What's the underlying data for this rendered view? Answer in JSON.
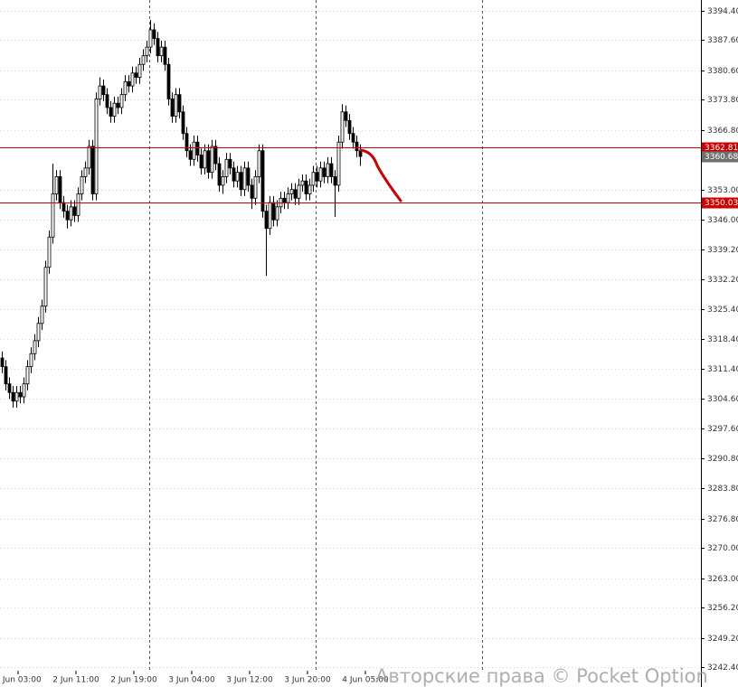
{
  "chart_data": {
    "type": "candlestick",
    "open": [
      3314,
      3312,
      3308,
      3306,
      3304,
      3306,
      3305,
      3308,
      3312,
      3315,
      3318,
      3322,
      3326,
      3335,
      3342,
      3352,
      3356,
      3350,
      3348,
      3346,
      3349,
      3347,
      3352,
      3356,
      3358,
      3363,
      3352,
      3374,
      3377,
      3375,
      3372,
      3370,
      3373,
      3372,
      3375,
      3378,
      3377,
      3380,
      3379,
      3382,
      3384,
      3386,
      3390,
      3388,
      3384,
      3386,
      3382,
      3374,
      3370,
      3375,
      3371,
      3366,
      3362,
      3360,
      3364,
      3361,
      3358,
      3362,
      3357,
      3363,
      3359,
      3354,
      3356,
      3360,
      3358,
      3355,
      3357,
      3353,
      3358,
      3354,
      3351,
      3356,
      3362,
      3348,
      3344,
      3350,
      3346,
      3349,
      3351,
      3350,
      3352,
      3353,
      3351,
      3354,
      3355,
      3352,
      3354,
      3357,
      3355,
      3358,
      3356,
      3359,
      3356,
      3354,
      3364,
      3371,
      3369,
      3366,
      3364,
      3362
    ],
    "high": [
      3315.5,
      3313.5,
      3309.5,
      3307.5,
      3307.5,
      3307.5,
      3309.5,
      3313.5,
      3316.5,
      3319.5,
      3323.5,
      3327.5,
      3336.5,
      3343.5,
      3359,
      3357.5,
      3357.5,
      3351.5,
      3349.5,
      3350.5,
      3350.5,
      3353.5,
      3357.5,
      3359.5,
      3364.5,
      3364.5,
      3375.5,
      3379,
      3378.5,
      3376.5,
      3373.5,
      3374.5,
      3374.5,
      3376.5,
      3379.5,
      3379.5,
      3381.5,
      3381.5,
      3383.5,
      3385.5,
      3387.5,
      3392.3,
      3391.5,
      3389.5,
      3387.5,
      3387.5,
      3383.5,
      3375.5,
      3376.5,
      3376.5,
      3372.5,
      3367.5,
      3363.5,
      3365.5,
      3365.5,
      3362.5,
      3363.5,
      3363.5,
      3364.5,
      3364.5,
      3360.5,
      3357.5,
      3361.5,
      3361.5,
      3359.5,
      3358.5,
      3358.5,
      3359.5,
      3359.5,
      3355.5,
      3357.5,
      3363.5,
      3363.5,
      3349.5,
      3351.5,
      3351.5,
      3350.5,
      3352.5,
      3352.5,
      3353.5,
      3354.5,
      3354.5,
      3355.5,
      3356.5,
      3356.5,
      3355.5,
      3358.5,
      3358.5,
      3359.5,
      3359.5,
      3360.5,
      3360.5,
      3357.5,
      3365.5,
      3372.8,
      3372.5,
      3370.5,
      3367.5,
      3365.5,
      3363.5
    ],
    "low": [
      3310.5,
      3306.5,
      3304.5,
      3302.5,
      3302.5,
      3303.5,
      3303.5,
      3306.5,
      3310.5,
      3313.5,
      3316.5,
      3320.5,
      3324.5,
      3333.5,
      3340.5,
      3350.5,
      3348.5,
      3346.5,
      3344,
      3344.5,
      3345.5,
      3345.5,
      3350.5,
      3354.5,
      3356.5,
      3350.5,
      3350.5,
      3372.5,
      3373.5,
      3370.5,
      3368.5,
      3368.5,
      3370.5,
      3370.5,
      3373.5,
      3375.5,
      3375.5,
      3377.5,
      3377.5,
      3380.5,
      3382.5,
      3384.5,
      3386.5,
      3382.5,
      3382.5,
      3380.5,
      3372.5,
      3368.5,
      3368.5,
      3369.5,
      3364.5,
      3360.5,
      3358.5,
      3358.5,
      3359.5,
      3356.5,
      3356.5,
      3355.5,
      3355.5,
      3357.5,
      3352.5,
      3352,
      3354.5,
      3356.5,
      3353.5,
      3353.5,
      3351.5,
      3351.5,
      3352.5,
      3348.5,
      3349.5,
      3354.5,
      3346.5,
      3333,
      3342.5,
      3344.5,
      3344.5,
      3347.5,
      3348.5,
      3348.5,
      3350.5,
      3349.5,
      3349.5,
      3352.5,
      3350.5,
      3350.5,
      3352.5,
      3353.5,
      3353.5,
      3354.5,
      3354.5,
      3354.5,
      3346.7,
      3352.5,
      3362.5,
      3367.5,
      3364.5,
      3362.5,
      3360.5,
      3358.5
    ],
    "close": [
      3312,
      3308,
      3306,
      3304,
      3306,
      3305,
      3308,
      3312,
      3315,
      3318,
      3322,
      3326,
      3335,
      3342,
      3352,
      3356,
      3350,
      3348,
      3346,
      3349,
      3347,
      3352,
      3356,
      3358,
      3363,
      3352,
      3374,
      3377,
      3375,
      3372,
      3370,
      3373,
      3372,
      3375,
      3378,
      3377,
      3380,
      3379,
      3382,
      3384,
      3386,
      3390,
      3388,
      3384,
      3386,
      3382,
      3374,
      3370,
      3375,
      3371,
      3366,
      3362,
      3360,
      3364,
      3361,
      3358,
      3362,
      3357,
      3363,
      3359,
      3354,
      3356,
      3360,
      3358,
      3355,
      3357,
      3353,
      3358,
      3354,
      3351,
      3356,
      3362,
      3348,
      3344,
      3350,
      3346,
      3349,
      3351,
      3350,
      3352,
      3353,
      3351,
      3354,
      3355,
      3352,
      3354,
      3357,
      3355,
      3358,
      3356,
      3359,
      3356,
      3354,
      3364,
      3371,
      3369,
      3366,
      3364,
      3362,
      3360.68
    ],
    "up_color": "#ffffff",
    "down_color": "#000000",
    "xlim": [
      -0.5,
      193.25
    ],
    "xticks": [
      {
        "value": 4.5,
        "label": "2 Jun 03:00"
      },
      {
        "value": 20.5,
        "label": "2 Jun 11:00"
      },
      {
        "value": 36.5,
        "label": "2 Jun 19:00"
      },
      {
        "value": 52.5,
        "label": "3 Jun 04:00"
      },
      {
        "value": 68.5,
        "label": "3 Jun 12:00"
      },
      {
        "value": 84.5,
        "label": "3 Jun 20:00"
      },
      {
        "value": 100.5,
        "label": "4 Jun 05:00"
      }
    ],
    "xgrid": [
      40.75,
      86.75,
      132.75
    ],
    "ylim": [
      3242.4,
      3394.4
    ],
    "yticks": [
      {
        "value": 3394.4,
        "label": "3394.40"
      },
      {
        "value": 3387.6,
        "label": "3387.60"
      },
      {
        "value": 3380.6,
        "label": "3380.60"
      },
      {
        "value": 3373.8,
        "label": "3373.80"
      },
      {
        "value": 3366.8,
        "label": "3366.80"
      },
      {
        "value": 3353,
        "label": "3353.00"
      },
      {
        "value": 3346,
        "label": "3346.00"
      },
      {
        "value": 3339.2,
        "label": "3339.20"
      },
      {
        "value": 3332.2,
        "label": "3332.20"
      },
      {
        "value": 3325.4,
        "label": "3325.40"
      },
      {
        "value": 3318.4,
        "label": "3318.40"
      },
      {
        "value": 3311.4,
        "label": "3311.40"
      },
      {
        "value": 3304.6,
        "label": "3304.60"
      },
      {
        "value": 3297.6,
        "label": "3297.60"
      },
      {
        "value": 3290.8,
        "label": "3290.80"
      },
      {
        "value": 3283.8,
        "label": "3283.80"
      },
      {
        "value": 3276.8,
        "label": "3276.80"
      },
      {
        "value": 3270,
        "label": "3270.00"
      },
      {
        "value": 3263,
        "label": "3263.00"
      },
      {
        "value": 3256.2,
        "label": "3256.20"
      },
      {
        "value": 3249.2,
        "label": "3249.20"
      },
      {
        "value": 3242.4,
        "label": "3242.40"
      }
    ],
    "grid": true,
    "levels": [
      3362.81,
      3350.03
    ],
    "level_color": "#cc0000",
    "last_price": 3360.68,
    "last_price_color": "#707070",
    "watermark": "Авторские права © Pocket Option"
  }
}
